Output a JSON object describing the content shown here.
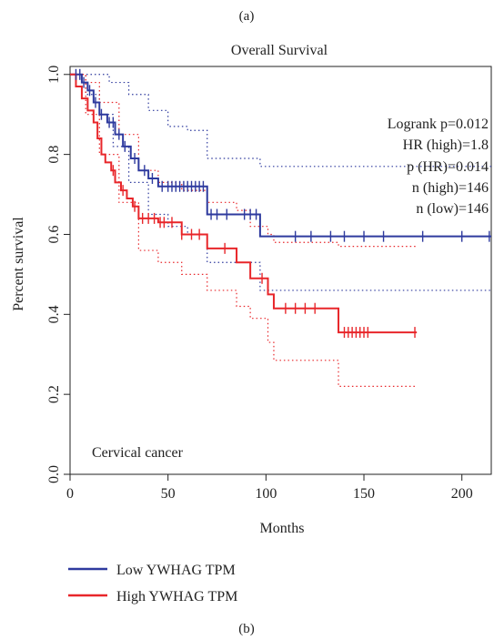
{
  "figure": {
    "top_caption": "(a)",
    "bottom_caption": "(b)"
  },
  "chart_data": {
    "type": "line",
    "subtype": "kaplan-meier",
    "title": "Overall Survival",
    "xlabel": "Months",
    "ylabel": "Percent survival",
    "xlim": [
      0,
      215
    ],
    "ylim": [
      0,
      1.02
    ],
    "x_ticks": [
      0,
      50,
      100,
      150,
      200
    ],
    "y_ticks": [
      0.0,
      0.2,
      0.4,
      0.6,
      0.8,
      1.0
    ],
    "y_tick_labels": [
      "0.0",
      "0.2",
      "0.4",
      "0.6",
      "0.8",
      "1.0"
    ],
    "annotation": "Cervical cancer",
    "stats": [
      "Logrank p=0.012",
      "HR (high)=1.8",
      "p (HR)=0.014",
      "n (high)=146",
      "n (low)=146"
    ],
    "legend": {
      "placement": "bottom-left"
    },
    "series": [
      {
        "name": "Low YWHAG TPM",
        "color": "#2e3a9e",
        "steps": [
          [
            0,
            1.0
          ],
          [
            6,
            0.98
          ],
          [
            9,
            0.96
          ],
          [
            12,
            0.93
          ],
          [
            15,
            0.9
          ],
          [
            19,
            0.88
          ],
          [
            23,
            0.85
          ],
          [
            27,
            0.82
          ],
          [
            31,
            0.79
          ],
          [
            35,
            0.76
          ],
          [
            40,
            0.74
          ],
          [
            45,
            0.72
          ],
          [
            55,
            0.72
          ],
          [
            70,
            0.65
          ],
          [
            97,
            0.65
          ],
          [
            97,
            0.595
          ],
          [
            215,
            0.595
          ]
        ],
        "censor_x": [
          3,
          5,
          7,
          10,
          13,
          16,
          20,
          22,
          25,
          28,
          33,
          38,
          42,
          47,
          50,
          52,
          54,
          56,
          58,
          60,
          62,
          64,
          66,
          68,
          72,
          75,
          80,
          89,
          92,
          95,
          115,
          123,
          133,
          140,
          150,
          160,
          180,
          200,
          214
        ],
        "ci_upper": [
          [
            0,
            1.0
          ],
          [
            10,
            1.0
          ],
          [
            20,
            0.98
          ],
          [
            30,
            0.95
          ],
          [
            40,
            0.91
          ],
          [
            50,
            0.87
          ],
          [
            60,
            0.86
          ],
          [
            70,
            0.79
          ],
          [
            97,
            0.79
          ],
          [
            97,
            0.77
          ],
          [
            215,
            0.77
          ]
        ],
        "ci_lower": [
          [
            0,
            1.0
          ],
          [
            8,
            0.95
          ],
          [
            15,
            0.9
          ],
          [
            22,
            0.82
          ],
          [
            30,
            0.73
          ],
          [
            40,
            0.65
          ],
          [
            50,
            0.62
          ],
          [
            60,
            0.6
          ],
          [
            70,
            0.53
          ],
          [
            97,
            0.53
          ],
          [
            97,
            0.46
          ],
          [
            215,
            0.46
          ]
        ]
      },
      {
        "name": "High YWHAG TPM",
        "color": "#e8262a",
        "steps": [
          [
            0,
            1.0
          ],
          [
            3,
            0.97
          ],
          [
            6,
            0.94
          ],
          [
            9,
            0.91
          ],
          [
            12,
            0.88
          ],
          [
            14,
            0.84
          ],
          [
            16,
            0.8
          ],
          [
            18,
            0.78
          ],
          [
            21,
            0.76
          ],
          [
            23,
            0.73
          ],
          [
            26,
            0.71
          ],
          [
            29,
            0.69
          ],
          [
            32,
            0.67
          ],
          [
            35,
            0.64
          ],
          [
            45,
            0.63
          ],
          [
            57,
            0.6
          ],
          [
            70,
            0.565
          ],
          [
            85,
            0.53
          ],
          [
            92,
            0.49
          ],
          [
            101,
            0.45
          ],
          [
            104,
            0.415
          ],
          [
            137,
            0.415
          ],
          [
            137,
            0.355
          ],
          [
            177,
            0.355
          ]
        ],
        "censor_x": [
          22,
          27,
          33,
          37,
          40,
          43,
          46,
          48,
          52,
          57,
          62,
          66,
          79,
          98,
          110,
          115,
          120,
          125,
          140,
          142,
          144,
          146,
          148,
          150,
          152,
          176
        ],
        "ci_upper": [
          [
            0,
            1.0
          ],
          [
            8,
            0.98
          ],
          [
            15,
            0.93
          ],
          [
            25,
            0.85
          ],
          [
            35,
            0.76
          ],
          [
            45,
            0.73
          ],
          [
            57,
            0.71
          ],
          [
            70,
            0.68
          ],
          [
            85,
            0.66
          ],
          [
            92,
            0.62
          ],
          [
            101,
            0.6
          ],
          [
            104,
            0.58
          ],
          [
            137,
            0.58
          ],
          [
            137,
            0.57
          ],
          [
            177,
            0.57
          ]
        ],
        "ci_lower": [
          [
            0,
            1.0
          ],
          [
            8,
            0.9
          ],
          [
            15,
            0.8
          ],
          [
            25,
            0.68
          ],
          [
            35,
            0.56
          ],
          [
            45,
            0.53
          ],
          [
            57,
            0.5
          ],
          [
            70,
            0.46
          ],
          [
            85,
            0.42
          ],
          [
            92,
            0.39
          ],
          [
            101,
            0.33
          ],
          [
            104,
            0.285
          ],
          [
            137,
            0.285
          ],
          [
            137,
            0.22
          ],
          [
            177,
            0.22
          ]
        ]
      }
    ]
  }
}
